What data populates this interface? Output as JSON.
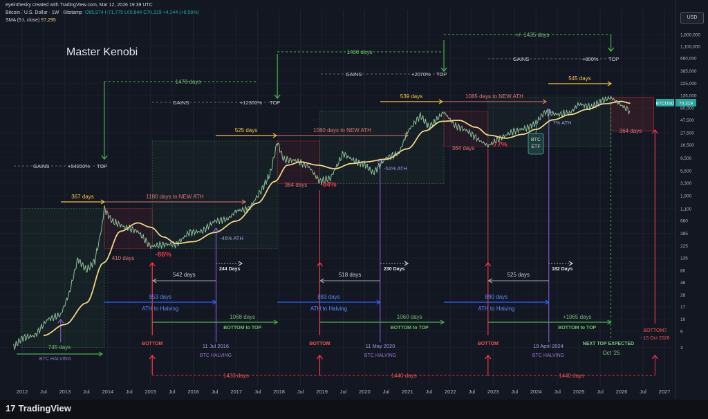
{
  "header": {
    "line1": "eyeinthesky created with TradingView.com, Mar 12, 2026 19:39 UTC",
    "symbol": "Bitcoin / U.S. Dollar · 1W · Bitstamp",
    "ohlc": "O65,974 H71,775 L60,844 C70,319 +4,344 (+6.58%)",
    "sma_label": "SMA (55, close)",
    "sma_value": "97,295"
  },
  "currency": "USD",
  "ticker_badge": "BTCUSD",
  "price_badge": "70,319",
  "logo_text": "TradingView",
  "author": "Master Kenobi",
  "chart_data": {
    "type": "line",
    "scale": "log",
    "x_ticks": [
      "2012",
      "Jul",
      "2013",
      "Jul",
      "2014",
      "Jul",
      "2015",
      "Jul",
      "2016",
      "Jul",
      "2017",
      "Jul",
      "2018",
      "Jul",
      "2019",
      "Jul",
      "2020",
      "Jul",
      "2021",
      "Jul",
      "2022",
      "Jul",
      "2023",
      "Jul",
      "2024",
      "Jul",
      "2025",
      "Jul",
      "2026",
      "Jul",
      "2027"
    ],
    "y_ticks": [
      "1,800,000",
      "1,100,000",
      "660,000",
      "385,000",
      "225,000",
      "135,000",
      "80,000",
      "47,500",
      "27,500",
      "16,500",
      "9,500",
      "5,500",
      "3,300",
      "1,900",
      "1,100",
      "660",
      "385",
      "225",
      "135",
      "80",
      "48",
      "28",
      "17",
      "10",
      "6",
      "3"
    ],
    "ylim": [
      1,
      1800000
    ],
    "series": [
      {
        "x": [
          2011.8,
          2012.0,
          2012.3,
          2012.6,
          2012.9,
          2013.1,
          2013.3,
          2013.5,
          2013.7,
          2013.85,
          2013.92,
          2014.1,
          2014.4,
          2014.7,
          2015.0,
          2015.3,
          2015.6,
          2015.9,
          2016.2,
          2016.5,
          2016.8,
          2017.0,
          2017.3,
          2017.6,
          2017.8,
          2017.96,
          2018.1,
          2018.4,
          2018.7,
          2018.95,
          2019.2,
          2019.5,
          2019.8,
          2020.0,
          2020.2,
          2020.5,
          2020.8,
          2021.0,
          2021.3,
          2021.5,
          2021.85,
          2022.1,
          2022.4,
          2022.7,
          2022.88,
          2023.2,
          2023.5,
          2023.8,
          2024.0,
          2024.2,
          2024.5,
          2024.8,
          2025.0,
          2025.3,
          2025.5,
          2025.75,
          2025.95,
          2026.1,
          2026.19
        ],
        "y": [
          3,
          4.5,
          5,
          10,
          12,
          30,
          130,
          80,
          120,
          450,
          1100,
          650,
          500,
          420,
          220,
          240,
          240,
          400,
          420,
          650,
          700,
          1000,
          1100,
          2500,
          5000,
          19000,
          9000,
          8500,
          6500,
          3500,
          4000,
          11500,
          8000,
          7200,
          5000,
          9500,
          11500,
          29000,
          58000,
          35000,
          67000,
          38000,
          30000,
          19500,
          16000,
          23000,
          30000,
          34000,
          42000,
          67000,
          60000,
          65000,
          94000,
          82000,
          105000,
          124000,
          95000,
          78000,
          70319
        ]
      }
    ],
    "sma": {
      "x": [
        2012.5,
        2013.0,
        2013.5,
        2013.9,
        2014.3,
        2014.7,
        2015.0,
        2015.3,
        2015.6,
        2016.0,
        2016.5,
        2017.0,
        2017.5,
        2017.9,
        2018.2,
        2018.5,
        2018.9,
        2019.3,
        2019.7,
        2020.0,
        2020.5,
        2021.0,
        2021.4,
        2021.8,
        2022.2,
        2022.6,
        2022.9,
        2023.3,
        2023.7,
        2024.0,
        2024.4,
        2024.8,
        2025.2,
        2025.6,
        2026.0,
        2026.2
      ],
      "y": [
        5,
        8,
        20,
        110,
        420,
        600,
        500,
        330,
        250,
        270,
        400,
        650,
        1400,
        3500,
        7000,
        8000,
        7000,
        6000,
        7500,
        8000,
        9000,
        14000,
        30000,
        45000,
        47000,
        35000,
        25000,
        22000,
        26000,
        32000,
        48000,
        60000,
        75000,
        95000,
        105000,
        97295
      ]
    }
  },
  "annotations": {
    "gains": [
      {
        "label": "GAINS",
        "pct": "+54200%",
        "top": "TOP"
      },
      {
        "label": "GAINS",
        "pct": "+12300%",
        "top": "TOP"
      },
      {
        "label": "GAINS",
        "pct": "+2070%",
        "top": "TOP"
      },
      {
        "label": "GAINS",
        "pct": "+800%",
        "top": "TOP"
      }
    ],
    "cycle_days": [
      "1478 days",
      "1430 days",
      "+/- 1435 days"
    ],
    "halving_to_top": [
      "367 days",
      "525 days",
      "539 days",
      "545 days"
    ],
    "new_ath": [
      "1180 days to NEW ATH",
      "1080 days to NEW ATH",
      "1085 days to NEW ATH"
    ],
    "bear_days": [
      "410 days",
      "364 days",
      "364 days",
      "364 days"
    ],
    "drawdowns": [
      "-86%",
      "-84%",
      "-77%"
    ],
    "ath_pct": [
      "-45% ATH",
      "-51% ATH",
      "7% ATH"
    ],
    "btc_etf": [
      "BTC",
      "ETF"
    ],
    "short_days": [
      "244 Days",
      "230 Days",
      "182 Days"
    ],
    "bottom_to_halving": [
      "542 days",
      "518 days",
      "525 days"
    ],
    "ath_to_halving_days": [
      "953 days",
      "883 days",
      "890 days"
    ],
    "ath_to_halving_label": "ATH to Halving",
    "bottom_to_top_days": [
      "1068 days",
      "1060 days",
      "+1065 days"
    ],
    "bottom_to_top_label": "BOTTOM to TOP",
    "halving_first_days": "745 days",
    "halving_label": "BTC HALVING",
    "halving_dates": [
      "11 Jul 2016",
      "11 May 2020",
      "19 April 2024"
    ],
    "bottom_label": "BOTTOM",
    "bottom_to_bottom": [
      "1433 days",
      "1440 days",
      "1440 days"
    ],
    "next_top": [
      "NEXT TOP EXPECTED",
      "Oct '25"
    ],
    "next_bottom": [
      "BOTTOM?",
      "- 15 Oct 2026"
    ]
  },
  "colors": {
    "background": "#131722",
    "green": "#4caf50",
    "yellow": "#f6c343",
    "red": "#f23645",
    "blue": "#2962ff",
    "purple": "#7e57c2",
    "sma": "#f0d48a"
  }
}
